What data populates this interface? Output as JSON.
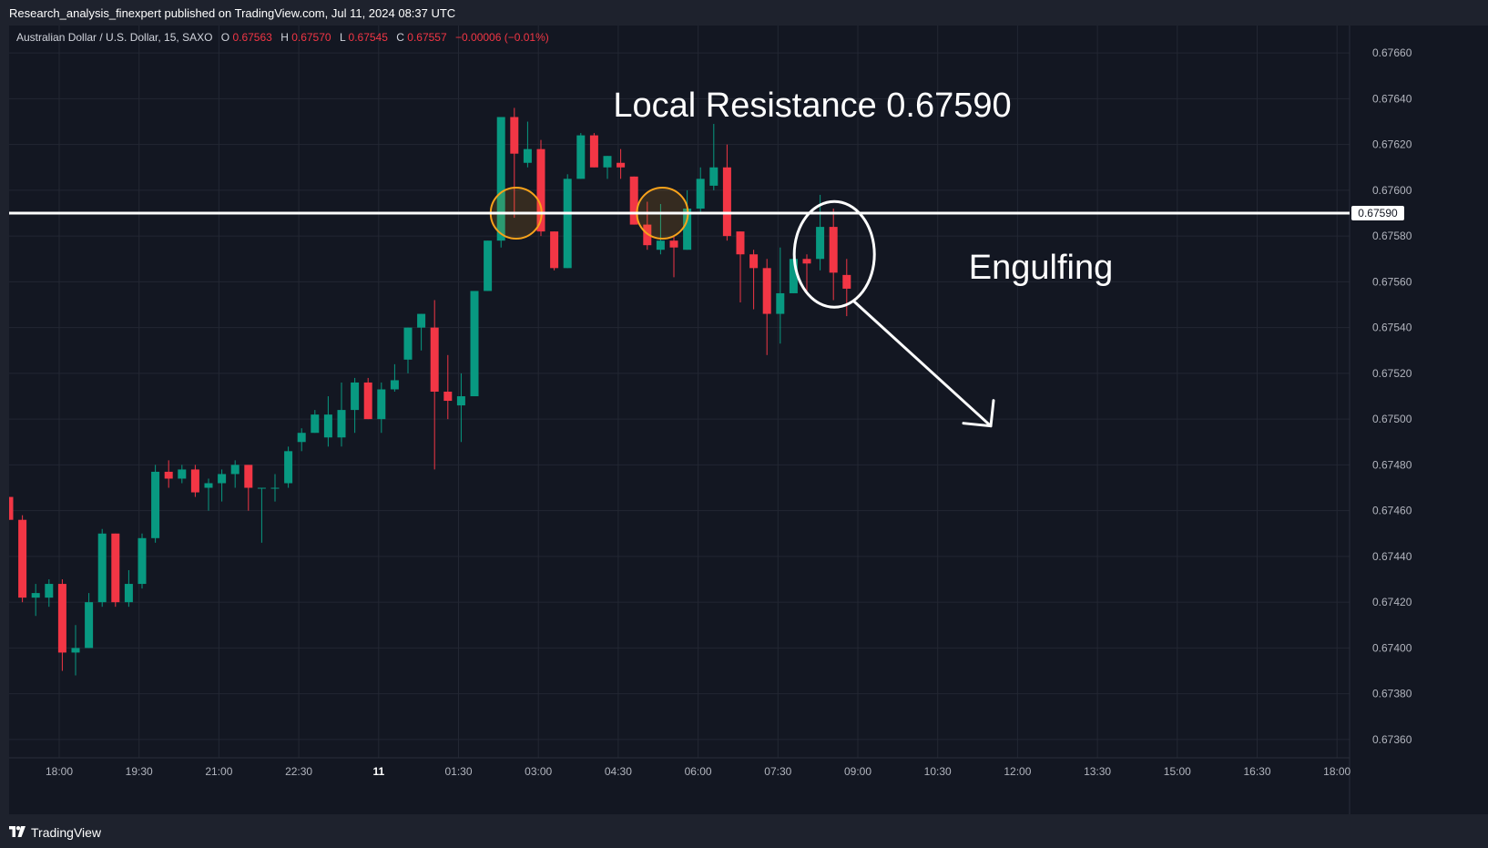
{
  "publish_line": "Research_analysis_finexpert published on TradingView.com, Jul 11, 2024 08:37 UTC",
  "footer_brand": "TradingView",
  "colors": {
    "background": "#131722",
    "frame": "#1e222d",
    "grid": "#232733",
    "up": "#089981",
    "down": "#f23645",
    "text": "#b2b5be",
    "white": "#ffffff",
    "highlight_circle": "#f7a21b"
  },
  "chart_data": {
    "type": "candlestick",
    "symbol_line": {
      "name": "Australian Dollar / U.S. Dollar, 15, SAXO",
      "o_label": "O",
      "o_value": "0.67563",
      "h_label": "H",
      "h_value": "0.67570",
      "l_label": "L",
      "l_value": "0.67545",
      "c_label": "C",
      "c_value": "0.67557",
      "change": "−0.00006 (−0.01%)"
    },
    "y_ticks": [
      "0.67660",
      "0.67640",
      "0.67620",
      "0.67600",
      "0.67580",
      "0.67560",
      "0.67540",
      "0.67520",
      "0.67500",
      "0.67480",
      "0.67460",
      "0.67440",
      "0.67420",
      "0.67400",
      "0.67380",
      "0.67360"
    ],
    "x_ticks": [
      "18:00",
      "19:30",
      "21:00",
      "22:30",
      "11",
      "01:30",
      "03:00",
      "04:30",
      "06:00",
      "07:30",
      "09:00",
      "10:30",
      "12:00",
      "13:30",
      "15:00",
      "16:30",
      "18:00"
    ],
    "x_tick_bold": [
      false,
      false,
      false,
      false,
      true,
      false,
      false,
      false,
      false,
      false,
      false,
      false,
      false,
      false,
      false,
      false,
      false
    ],
    "ylim": [
      0.67352,
      0.67672
    ],
    "candles": [
      [
        0.67466,
        0.67466,
        0.67456,
        0.67456
      ],
      [
        0.67456,
        0.67458,
        0.6742,
        0.67422
      ],
      [
        0.67422,
        0.67428,
        0.67414,
        0.67424
      ],
      [
        0.67422,
        0.6743,
        0.67418,
        0.67428
      ],
      [
        0.67428,
        0.6743,
        0.6739,
        0.67398
      ],
      [
        0.67398,
        0.6741,
        0.67388,
        0.674
      ],
      [
        0.674,
        0.67424,
        0.674,
        0.6742
      ],
      [
        0.6742,
        0.67452,
        0.67418,
        0.6745
      ],
      [
        0.6745,
        0.6745,
        0.67418,
        0.6742
      ],
      [
        0.6742,
        0.67434,
        0.67418,
        0.67428
      ],
      [
        0.67428,
        0.6745,
        0.67426,
        0.67448
      ],
      [
        0.67448,
        0.6748,
        0.67446,
        0.67477
      ],
      [
        0.67477,
        0.67482,
        0.6747,
        0.67474
      ],
      [
        0.67474,
        0.6748,
        0.67472,
        0.67478
      ],
      [
        0.67478,
        0.6748,
        0.67466,
        0.67468
      ],
      [
        0.6747,
        0.67474,
        0.6746,
        0.67472
      ],
      [
        0.67472,
        0.67478,
        0.67464,
        0.67476
      ],
      [
        0.67476,
        0.67482,
        0.6747,
        0.6748
      ],
      [
        0.6748,
        0.6748,
        0.6746,
        0.6747
      ],
      [
        0.6747,
        0.6747,
        0.67446,
        0.6747
      ],
      [
        0.6747,
        0.67476,
        0.67464,
        0.6747
      ],
      [
        0.67472,
        0.67488,
        0.6747,
        0.67486
      ],
      [
        0.6749,
        0.67496,
        0.67486,
        0.67494
      ],
      [
        0.67494,
        0.67504,
        0.67494,
        0.67502
      ],
      [
        0.67492,
        0.6751,
        0.67488,
        0.67502
      ],
      [
        0.67492,
        0.67516,
        0.67488,
        0.67504
      ],
      [
        0.67504,
        0.67518,
        0.67494,
        0.67516
      ],
      [
        0.67516,
        0.67518,
        0.675,
        0.675
      ],
      [
        0.675,
        0.67516,
        0.67494,
        0.67513
      ],
      [
        0.67513,
        0.67524,
        0.67512,
        0.67517
      ],
      [
        0.67526,
        0.6754,
        0.6752,
        0.6754
      ],
      [
        0.6754,
        0.67546,
        0.6753,
        0.67546
      ],
      [
        0.6754,
        0.67552,
        0.67478,
        0.67512
      ],
      [
        0.67512,
        0.67528,
        0.675,
        0.67508
      ],
      [
        0.67506,
        0.6752,
        0.6749,
        0.6751
      ],
      [
        0.6751,
        0.67556,
        0.6751,
        0.67556
      ],
      [
        0.67556,
        0.67578,
        0.67556,
        0.67578
      ],
      [
        0.67578,
        0.67632,
        0.67575,
        0.67632
      ],
      [
        0.67632,
        0.67636,
        0.67588,
        0.67616
      ],
      [
        0.67612,
        0.6763,
        0.6761,
        0.67618
      ],
      [
        0.67618,
        0.67622,
        0.6758,
        0.67582
      ],
      [
        0.67582,
        0.67582,
        0.67565,
        0.67566
      ],
      [
        0.67566,
        0.67607,
        0.67566,
        0.67605
      ],
      [
        0.67605,
        0.67625,
        0.67605,
        0.67624
      ],
      [
        0.67624,
        0.67625,
        0.6761,
        0.6761
      ],
      [
        0.6761,
        0.67615,
        0.67605,
        0.67615
      ],
      [
        0.67612,
        0.67618,
        0.67605,
        0.6761
      ],
      [
        0.67606,
        0.67606,
        0.67585,
        0.67585
      ],
      [
        0.67585,
        0.67595,
        0.67574,
        0.67576
      ],
      [
        0.67574,
        0.67594,
        0.67572,
        0.67578
      ],
      [
        0.67578,
        0.6758,
        0.67562,
        0.67575
      ],
      [
        0.67574,
        0.676,
        0.67574,
        0.67592
      ],
      [
        0.67592,
        0.6761,
        0.6759,
        0.67605
      ],
      [
        0.67602,
        0.67629,
        0.676,
        0.6761
      ],
      [
        0.6761,
        0.6762,
        0.67578,
        0.6758
      ],
      [
        0.67582,
        0.67582,
        0.67551,
        0.67572
      ],
      [
        0.67572,
        0.67574,
        0.67548,
        0.67566
      ],
      [
        0.67566,
        0.6757,
        0.67528,
        0.67546
      ],
      [
        0.67546,
        0.67575,
        0.67533,
        0.67555
      ],
      [
        0.67555,
        0.67574,
        0.67555,
        0.6757
      ],
      [
        0.6757,
        0.67572,
        0.67555,
        0.67568
      ],
      [
        0.6757,
        0.67598,
        0.67565,
        0.67584
      ],
      [
        0.67584,
        0.67592,
        0.67552,
        0.67564
      ],
      [
        0.67563,
        0.6757,
        0.67545,
        0.67557
      ]
    ],
    "resistance_value": 0.6759,
    "resistance_label": "0.67590",
    "annotations": {
      "resistance_title": "Local Resistance 0.67590",
      "pattern_label": "Engulfing"
    },
    "grid": true
  }
}
